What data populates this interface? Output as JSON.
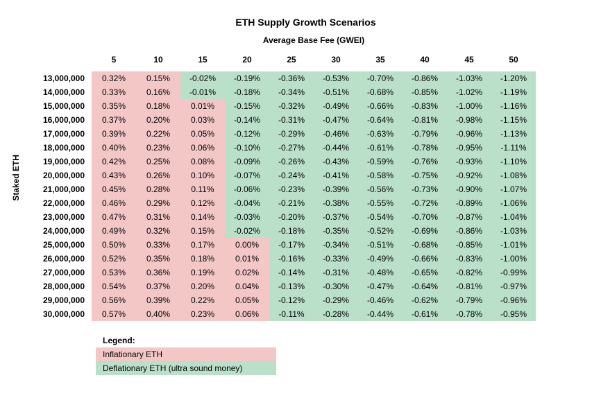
{
  "chart": {
    "type": "heatmap-table",
    "title": "ETH Supply Growth Scenarios",
    "x_axis_label": "Average Base Fee (GWEI)",
    "y_axis_label": "Staked ETH",
    "title_fontsize": 14,
    "label_fontsize": 12,
    "cell_fontsize": 12,
    "font_family": "Arial",
    "background_color": "#ffffff",
    "inflation_color": "#f3c7c6",
    "deflation_color": "#bae0ca",
    "text_color": "#000000",
    "col_headers": [
      "5",
      "10",
      "15",
      "20",
      "25",
      "30",
      "35",
      "40",
      "45",
      "50"
    ],
    "row_headers": [
      "13,000,000",
      "14,000,000",
      "15,000,000",
      "16,000,000",
      "17,000,000",
      "18,000,000",
      "19,000,000",
      "20,000,000",
      "21,000,000",
      "22,000,000",
      "23,000,000",
      "24,000,000",
      "25,000,000",
      "26,000,000",
      "27,000,000",
      "28,000,000",
      "29,000,000",
      "30,000,000"
    ],
    "cells": [
      [
        "0.32%",
        "0.15%",
        "-0.02%",
        "-0.19%",
        "-0.36%",
        "-0.53%",
        "-0.70%",
        "-0.86%",
        "-1.03%",
        "-1.20%"
      ],
      [
        "0.33%",
        "0.16%",
        "-0.01%",
        "-0.18%",
        "-0.34%",
        "-0.51%",
        "-0.68%",
        "-0.85%",
        "-1.02%",
        "-1.19%"
      ],
      [
        "0.35%",
        "0.18%",
        "0.01%",
        "-0.15%",
        "-0.32%",
        "-0.49%",
        "-0.66%",
        "-0.83%",
        "-1.00%",
        "-1.16%"
      ],
      [
        "0.37%",
        "0.20%",
        "0.03%",
        "-0.14%",
        "-0.31%",
        "-0.47%",
        "-0.64%",
        "-0.81%",
        "-0.98%",
        "-1.15%"
      ],
      [
        "0.39%",
        "0.22%",
        "0.05%",
        "-0.12%",
        "-0.29%",
        "-0.46%",
        "-0.63%",
        "-0.79%",
        "-0.96%",
        "-1.13%"
      ],
      [
        "0.40%",
        "0.23%",
        "0.06%",
        "-0.10%",
        "-0.27%",
        "-0.44%",
        "-0.61%",
        "-0.78%",
        "-0.95%",
        "-1.11%"
      ],
      [
        "0.42%",
        "0.25%",
        "0.08%",
        "-0.09%",
        "-0.26%",
        "-0.43%",
        "-0.59%",
        "-0.76%",
        "-0.93%",
        "-1.10%"
      ],
      [
        "0.43%",
        "0.26%",
        "0.10%",
        "-0.07%",
        "-0.24%",
        "-0.41%",
        "-0.58%",
        "-0.75%",
        "-0.92%",
        "-1.08%"
      ],
      [
        "0.45%",
        "0.28%",
        "0.11%",
        "-0.06%",
        "-0.23%",
        "-0.39%",
        "-0.56%",
        "-0.73%",
        "-0.90%",
        "-1.07%"
      ],
      [
        "0.46%",
        "0.29%",
        "0.12%",
        "-0.04%",
        "-0.21%",
        "-0.38%",
        "-0.55%",
        "-0.72%",
        "-0.89%",
        "-1.06%"
      ],
      [
        "0.47%",
        "0.31%",
        "0.14%",
        "-0.03%",
        "-0.20%",
        "-0.37%",
        "-0.54%",
        "-0.70%",
        "-0.87%",
        "-1.04%"
      ],
      [
        "0.49%",
        "0.32%",
        "0.15%",
        "-0.02%",
        "-0.18%",
        "-0.35%",
        "-0.52%",
        "-0.69%",
        "-0.86%",
        "-1.03%"
      ],
      [
        "0.50%",
        "0.33%",
        "0.17%",
        "0.00%",
        "-0.17%",
        "-0.34%",
        "-0.51%",
        "-0.68%",
        "-0.85%",
        "-1.01%"
      ],
      [
        "0.52%",
        "0.35%",
        "0.18%",
        "0.01%",
        "-0.16%",
        "-0.33%",
        "-0.49%",
        "-0.66%",
        "-0.83%",
        "-1.00%"
      ],
      [
        "0.53%",
        "0.36%",
        "0.19%",
        "0.02%",
        "-0.14%",
        "-0.31%",
        "-0.48%",
        "-0.65%",
        "-0.82%",
        "-0.99%"
      ],
      [
        "0.54%",
        "0.37%",
        "0.20%",
        "0.04%",
        "-0.13%",
        "-0.30%",
        "-0.47%",
        "-0.64%",
        "-0.81%",
        "-0.97%"
      ],
      [
        "0.56%",
        "0.39%",
        "0.22%",
        "0.05%",
        "-0.12%",
        "-0.29%",
        "-0.46%",
        "-0.62%",
        "-0.79%",
        "-0.96%"
      ],
      [
        "0.57%",
        "0.40%",
        "0.23%",
        "0.06%",
        "-0.11%",
        "-0.28%",
        "-0.44%",
        "-0.61%",
        "-0.78%",
        "-0.95%"
      ]
    ],
    "legend": {
      "title": "Legend:",
      "inflation_label": "Inflationary ETH",
      "deflation_label": "Deflationary ETH (ultra sound money)"
    }
  }
}
